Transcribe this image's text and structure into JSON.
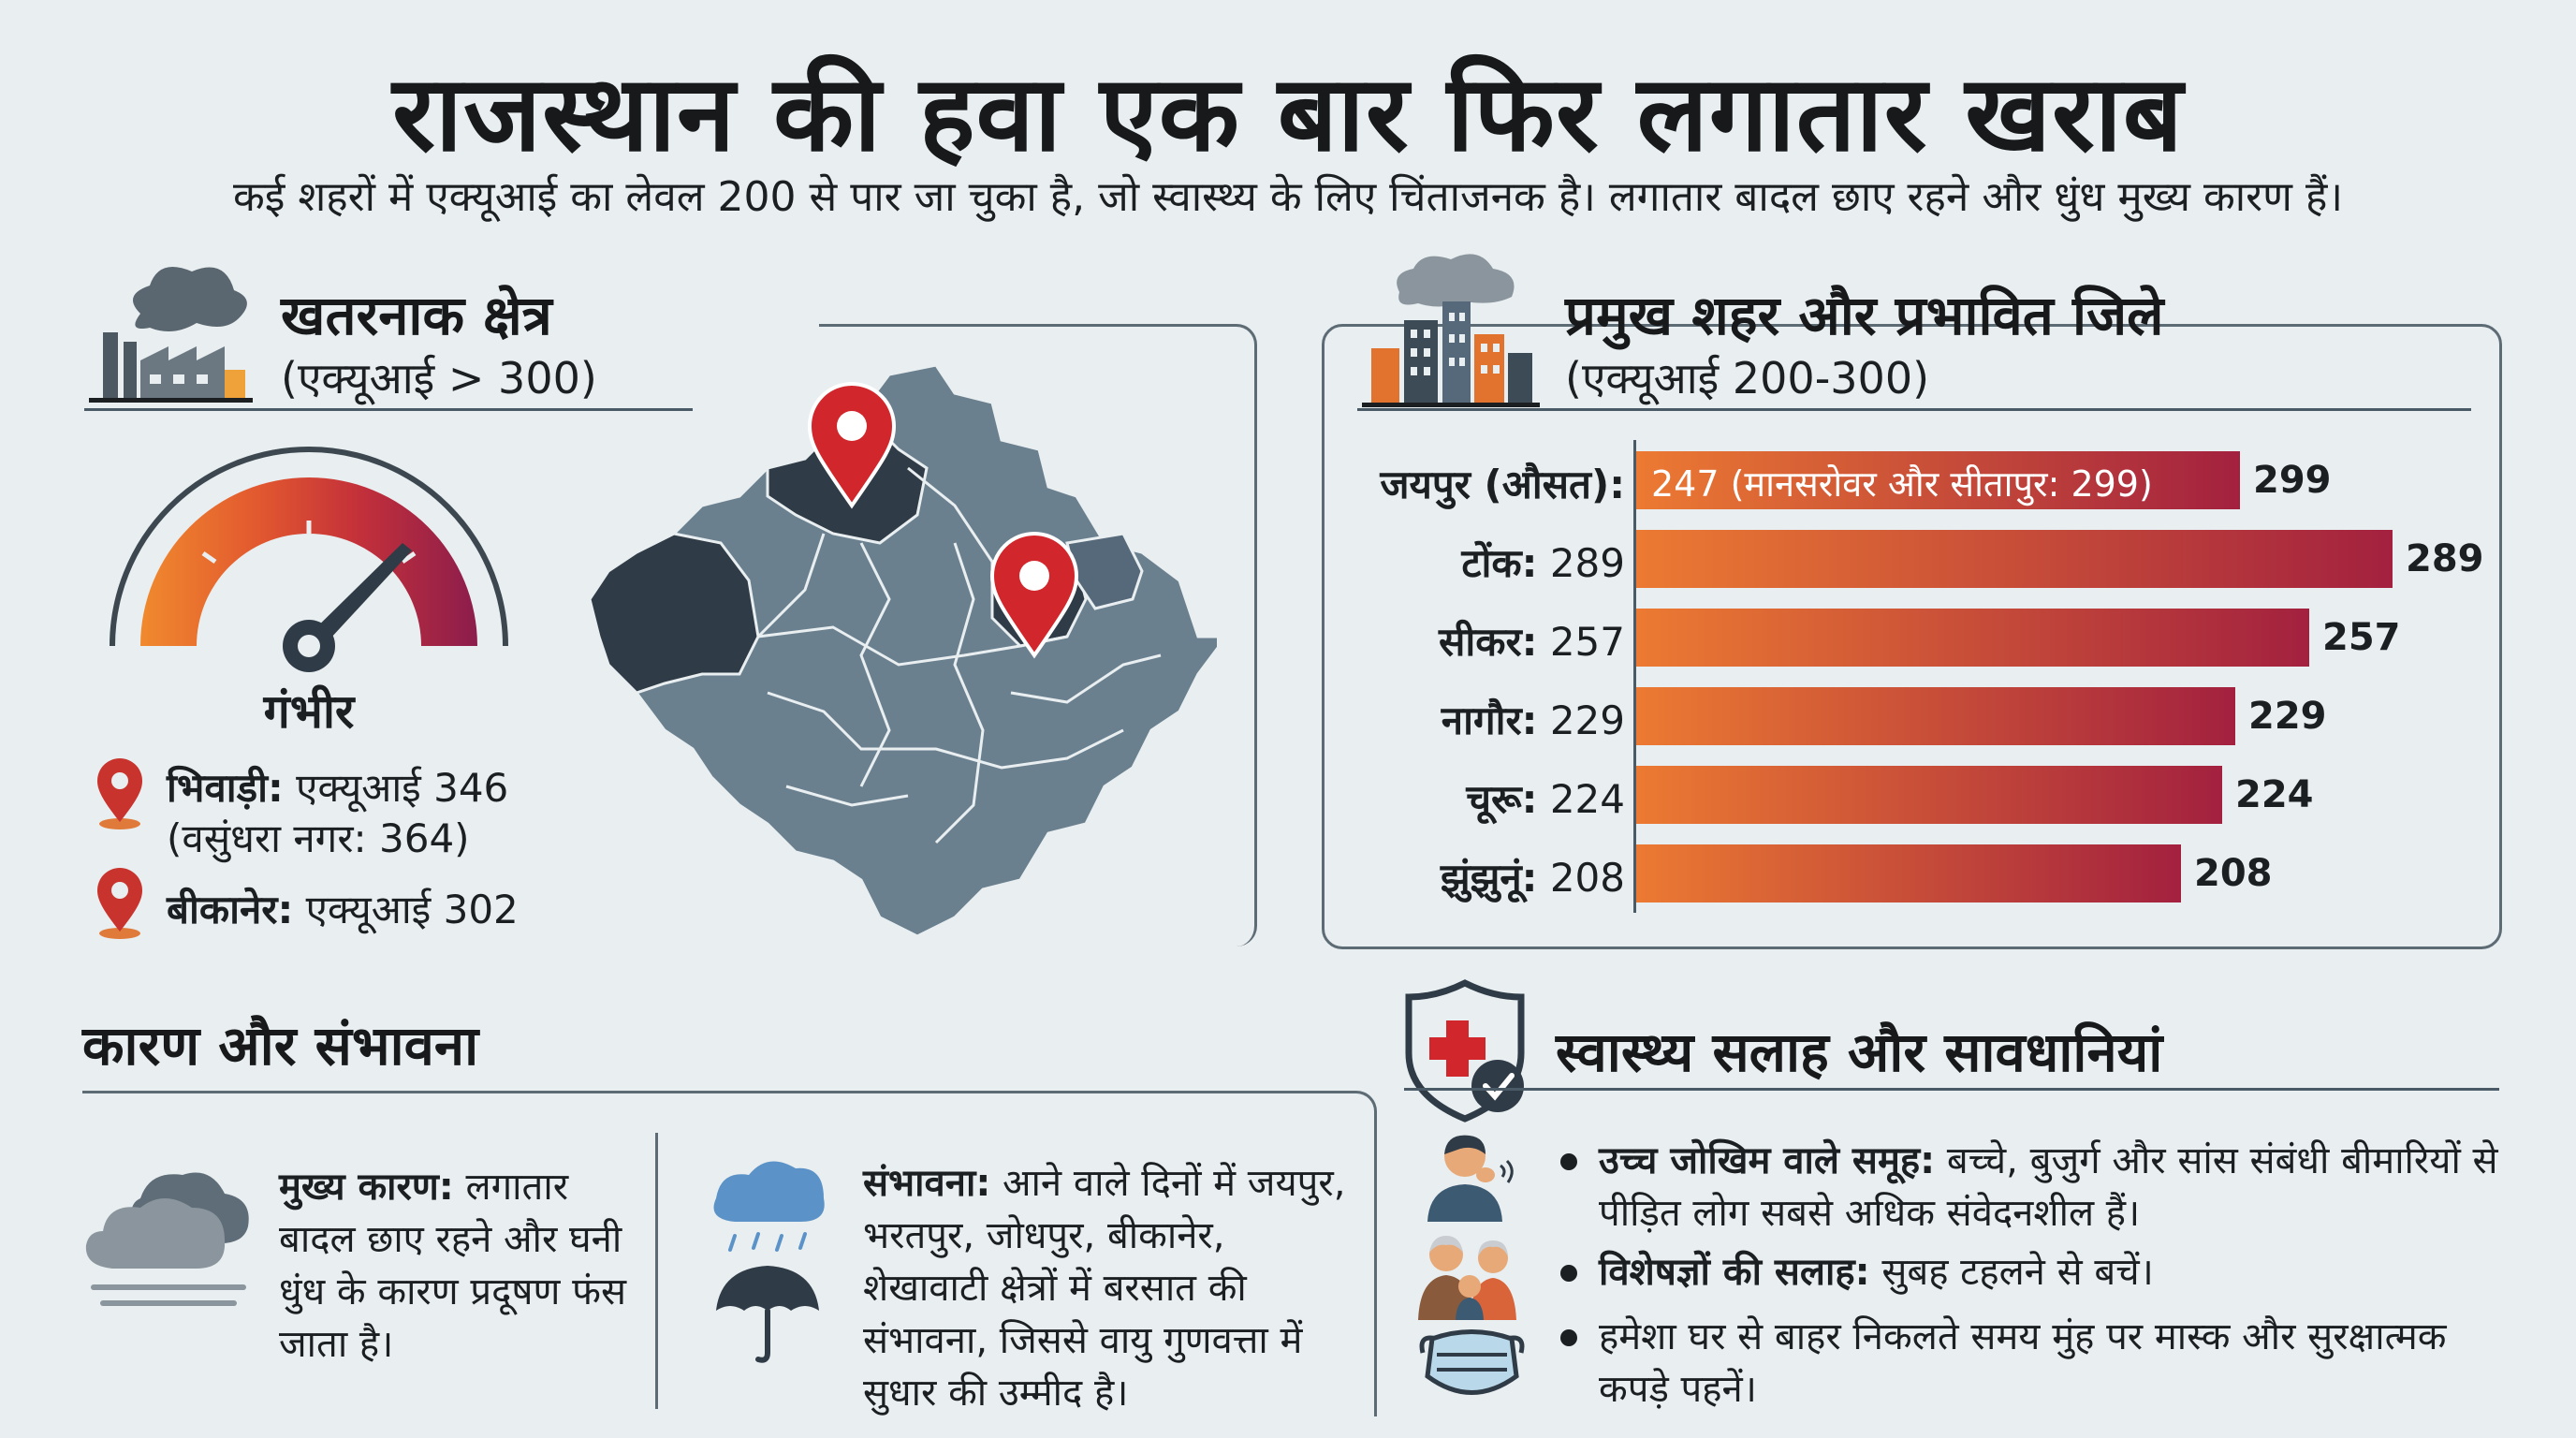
{
  "title": "राजस्थान की हवा एक बार फिर लगातार खराब",
  "subtitle": "कई शहरों में एक्यूआई का लेवल 200 से पार जा चुका है, जो स्वास्थ्य के लिए चिंताजनक है। लगातार बादल छाए रहने और धुंध मुख्य कारण हैं।",
  "danger": {
    "title": "खतरनाक क्षेत्र",
    "subtitle": "(एक्यूआई > 300)",
    "gauge_label": "गंभीर",
    "locations": [
      {
        "name": "भिवाड़ी:",
        "value": "एक्यूआई 346",
        "note": "(वसुंधरा नगर: 364)"
      },
      {
        "name": "बीकानेर:",
        "value": "एक्यूआई 302"
      }
    ]
  },
  "cities": {
    "title": "प्रमुख शहर और प्रभावित जिले",
    "subtitle": "(एक्यूआई 200-300)",
    "rows": [
      {
        "label": "जयपुर (औसत):",
        "value_text": "",
        "bar_text": "247 (मानसरोवर और सीतापुर: 299)",
        "end_value": "299",
        "aqi": 247
      },
      {
        "label": "टोंक:",
        "value_text": "289",
        "bar_text": "",
        "end_value": "289",
        "aqi": 289
      },
      {
        "label": "सीकर:",
        "value_text": "257",
        "bar_text": "",
        "end_value": "257",
        "aqi": 257
      },
      {
        "label": "नागौर:",
        "value_text": "229",
        "bar_text": "",
        "end_value": "229",
        "aqi": 229
      },
      {
        "label": "चूरू:",
        "value_text": "224",
        "bar_text": "",
        "end_value": "224",
        "aqi": 224
      },
      {
        "label": "झुंझुनूं:",
        "value_text": "208",
        "bar_text": "",
        "end_value": "208",
        "aqi": 208
      }
    ]
  },
  "causes": {
    "title": "कारण और संभावना",
    "main_cause_label": "मुख्य कारण:",
    "main_cause_text": "लगातार बादल छाए रहने और घनी धुंध के कारण प्रदूषण फंस जाता है।",
    "forecast_label": "संभावना:",
    "forecast_text": "आने वाले दिनों में जयपुर, भरतपुर, जोधपुर, बीकानेर, शेखावाटी क्षेत्रों में बरसात की संभावना, जिससे वायु गुणवत्ता में सुधार की उम्मीद है।"
  },
  "health": {
    "title": "स्वास्थ्य सलाह और सावधानियां",
    "items": [
      {
        "label": "उच्च जोखिम वाले समूह:",
        "text": "बच्चे, बुजुर्ग और सांस संबंधी बीमारियों से पीड़ित लोग सबसे अधिक संवेदनशील हैं।"
      },
      {
        "label": "विशेषज्ञों की सलाह:",
        "text": "सुबह टहलने से बचें।"
      },
      {
        "label": "",
        "text": "हमेशा घर से बाहर निकलते समय मुंह पर मास्क और सुरक्षात्मक कपड़े पहनें।"
      }
    ]
  },
  "colors": {
    "bar_start": "#ec7a32",
    "bar_end": "#a3213f",
    "map_base": "#6a808f",
    "map_dark": "#2f3b46",
    "pin": "#d1262b"
  }
}
